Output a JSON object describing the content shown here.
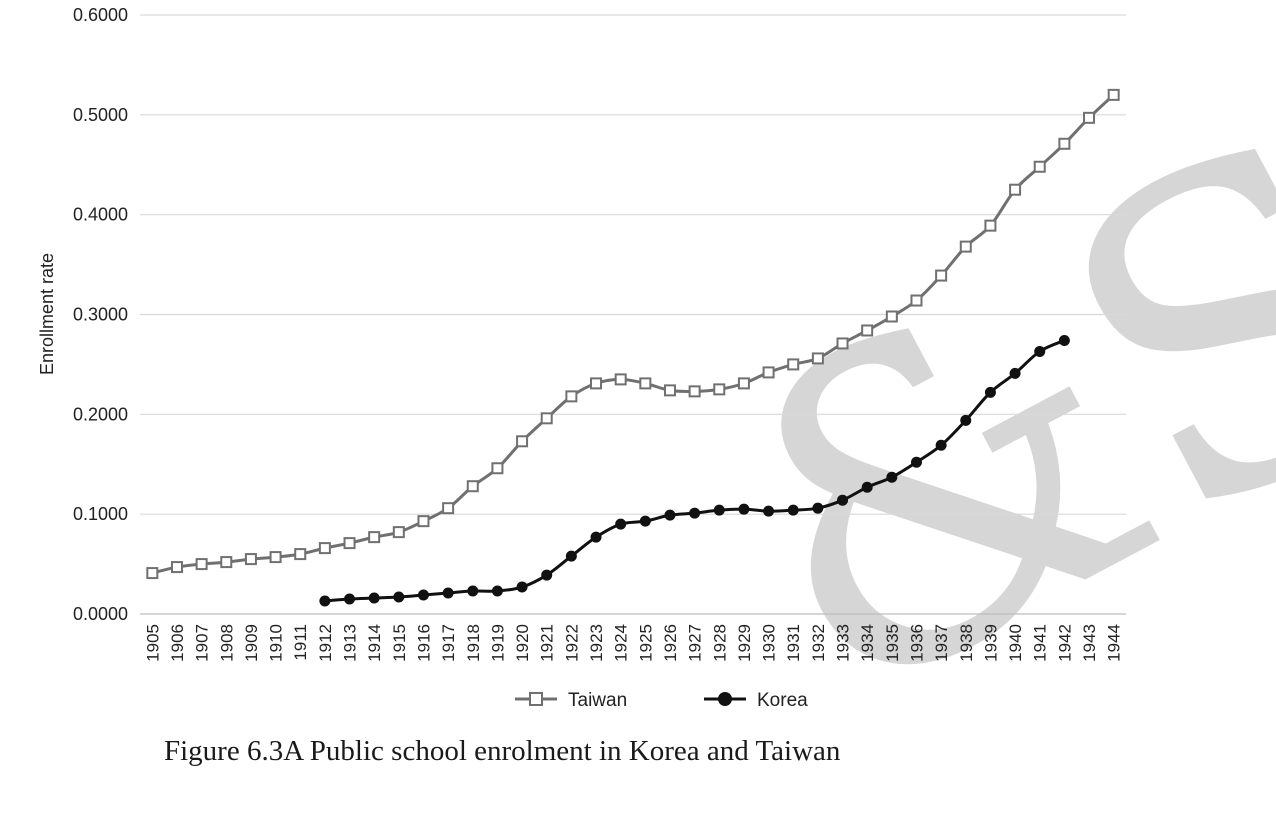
{
  "chart_data": {
    "type": "line",
    "title": "",
    "xlabel": "",
    "ylabel": "Enrollment rate",
    "ylim": [
      0,
      0.6
    ],
    "yticks": [
      "0.0000",
      "0.1000",
      "0.2000",
      "0.3000",
      "0.4000",
      "0.5000",
      "0.6000"
    ],
    "grid": true,
    "legend": "bottom-center",
    "categories": [
      "1905",
      "1906",
      "1907",
      "1908",
      "1909",
      "1910",
      "1911",
      "1912",
      "1913",
      "1914",
      "1915",
      "1916",
      "1917",
      "1918",
      "1919",
      "1920",
      "1921",
      "1922",
      "1923",
      "1924",
      "1925",
      "1926",
      "1927",
      "1928",
      "1929",
      "1930",
      "1931",
      "1932",
      "1933",
      "1934",
      "1935",
      "1936",
      "1937",
      "1938",
      "1939",
      "1940",
      "1941",
      "1942",
      "1943",
      "1944"
    ],
    "series": [
      {
        "name": "Taiwan",
        "color": "#707070",
        "marker": "square",
        "values": [
          0.041,
          0.047,
          0.05,
          0.052,
          0.055,
          0.057,
          0.06,
          0.066,
          0.071,
          0.077,
          0.082,
          0.093,
          0.106,
          0.128,
          0.146,
          0.173,
          0.196,
          0.218,
          0.231,
          0.235,
          0.231,
          0.224,
          0.223,
          0.225,
          0.231,
          0.242,
          0.25,
          0.256,
          0.271,
          0.284,
          0.298,
          0.314,
          0.339,
          0.368,
          0.389,
          0.425,
          0.448,
          0.471,
          0.497,
          0.52
        ]
      },
      {
        "name": "Korea",
        "color": "#111111",
        "marker": "circle",
        "values": [
          null,
          null,
          null,
          null,
          null,
          null,
          null,
          0.013,
          0.015,
          0.016,
          0.017,
          0.019,
          0.021,
          0.023,
          0.023,
          0.027,
          0.039,
          0.058,
          0.077,
          0.09,
          0.093,
          0.099,
          0.101,
          0.104,
          0.105,
          0.103,
          0.104,
          0.106,
          0.114,
          0.127,
          0.137,
          0.152,
          0.169,
          0.194,
          0.222,
          0.241,
          0.263,
          0.274,
          null,
          null
        ]
      }
    ]
  },
  "watermark_text": "&S",
  "caption": "Figure 6.3A  Public school enrolment in Korea and Taiwan"
}
